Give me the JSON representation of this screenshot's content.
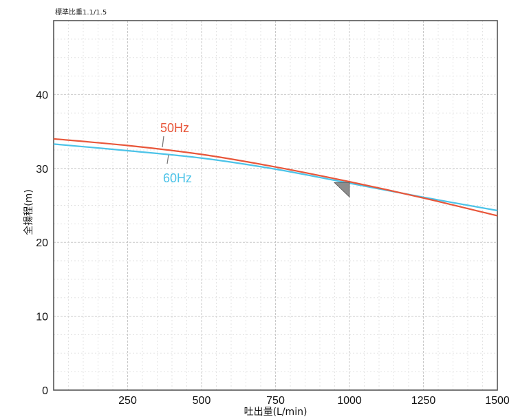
{
  "note": "標準比重1.1/1.5",
  "chart_data": {
    "type": "line",
    "xlabel": "吐出量(L/min)",
    "ylabel": "全揚程(m)",
    "xlim": [
      0,
      1500
    ],
    "ylim": [
      0,
      50
    ],
    "x_ticks": [
      250,
      500,
      750,
      1000,
      1250,
      1500
    ],
    "y_ticks": [
      0,
      10,
      20,
      30,
      40
    ],
    "grid": true,
    "series": [
      {
        "name": "50Hz",
        "color": "#e8563a",
        "x": [
          0,
          250,
          500,
          750,
          1000,
          1250,
          1500
        ],
        "y": [
          34.0,
          33.1,
          31.9,
          30.2,
          28.2,
          26.0,
          23.6
        ]
      },
      {
        "name": "60Hz",
        "color": "#4cc3e8",
        "x": [
          0,
          250,
          500,
          750,
          1000,
          1250,
          1500
        ],
        "y": [
          33.3,
          32.4,
          31.4,
          29.9,
          28.0,
          26.1,
          24.3
        ]
      }
    ],
    "annotations": [
      {
        "type": "operating-point-marker",
        "x": 1000,
        "y": 28
      }
    ]
  }
}
